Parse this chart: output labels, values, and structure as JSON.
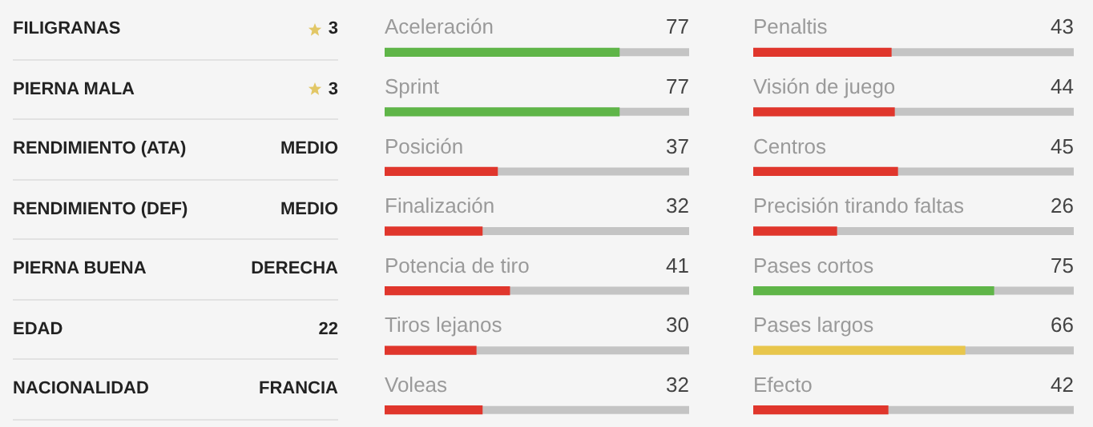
{
  "chart_data": [
    {
      "type": "other",
      "categories": [
        "FILIGRANAS",
        "PIERNA MALA",
        "RENDIMIENTO (ATA)",
        "RENDIMIENTO (DEF)",
        "PIERNA BUENA",
        "EDAD",
        "NACIONALIDAD"
      ],
      "value_labels": [
        "3",
        "3",
        "MEDIO",
        "MEDIO",
        "DERECHA",
        "22",
        "FRANCIA"
      ]
    },
    {
      "type": "bar",
      "orientation": "horizontal",
      "categories": [
        "Aceleración",
        "Sprint",
        "Posición",
        "Finalización",
        "Potencia de tiro",
        "Tiros lejanos",
        "Voleas"
      ],
      "values": [
        77,
        77,
        37,
        32,
        41,
        30,
        32
      ],
      "colors": [
        "#5fb548",
        "#5fb548",
        "#e0362c",
        "#e0362c",
        "#e0362c",
        "#e0362c",
        "#e0362c"
      ],
      "xlim": [
        0,
        100
      ],
      "data_labels": true
    },
    {
      "type": "bar",
      "orientation": "horizontal",
      "categories": [
        "Penaltis",
        "Visión de juego",
        "Centros",
        "Precisión tirando faltas",
        "Pases cortos",
        "Pases largos",
        "Efecto"
      ],
      "values": [
        43,
        44,
        45,
        26,
        75,
        66,
        42
      ],
      "colors": [
        "#e0362c",
        "#e0362c",
        "#e0362c",
        "#e0362c",
        "#5fb548",
        "#e8c64c",
        "#e0362c"
      ],
      "xlim": [
        0,
        100
      ],
      "data_labels": true
    }
  ]
}
